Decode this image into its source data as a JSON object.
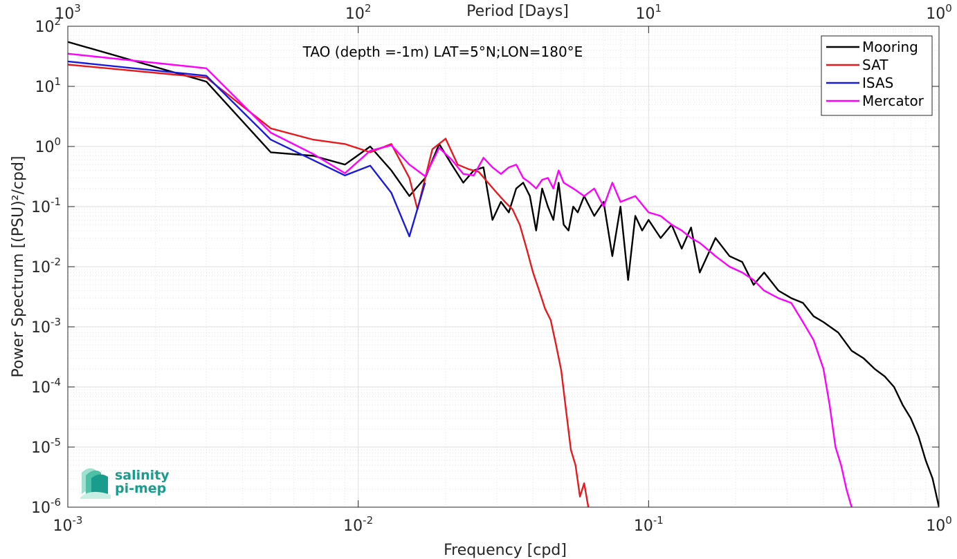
{
  "chart_data": {
    "type": "line",
    "title": "TAO (depth =-1m) LAT=5°N;LON=180°E",
    "xlabel": "Frequency [cpd]",
    "ylabel": "Power Spectrum [(PSU)²/cpd]",
    "top_xlabel": "Period [Days]",
    "xscale": "log",
    "yscale": "log",
    "xlim": [
      0.001,
      1
    ],
    "ylim": [
      1e-06,
      100
    ],
    "grid": true,
    "legend_position": "top-right",
    "x_ticks": [
      {
        "base": "10",
        "exp": "-3"
      },
      {
        "base": "10",
        "exp": "-2"
      },
      {
        "base": "10",
        "exp": "-1"
      },
      {
        "base": "10",
        "exp": "0"
      }
    ],
    "top_ticks": [
      {
        "base": "10",
        "exp": "3"
      },
      {
        "base": "10",
        "exp": "2"
      },
      {
        "base": "10",
        "exp": "1"
      },
      {
        "base": "10",
        "exp": "0"
      }
    ],
    "y_ticks": [
      {
        "base": "10",
        "exp": "2"
      },
      {
        "base": "10",
        "exp": "1"
      },
      {
        "base": "10",
        "exp": "0"
      },
      {
        "base": "10",
        "exp": "-1"
      },
      {
        "base": "10",
        "exp": "-2"
      },
      {
        "base": "10",
        "exp": "-3"
      },
      {
        "base": "10",
        "exp": "-4"
      },
      {
        "base": "10",
        "exp": "-5"
      },
      {
        "base": "10",
        "exp": "-6"
      }
    ],
    "series": [
      {
        "name": "Mooring",
        "color": "#000000",
        "x": [
          0.001,
          0.003,
          0.005,
          0.007,
          0.009,
          0.011,
          0.013,
          0.015,
          0.017,
          0.019,
          0.021,
          0.023,
          0.025,
          0.027,
          0.029,
          0.031,
          0.033,
          0.035,
          0.037,
          0.039,
          0.041,
          0.043,
          0.045,
          0.047,
          0.049,
          0.051,
          0.053,
          0.055,
          0.057,
          0.06,
          0.065,
          0.07,
          0.075,
          0.08,
          0.085,
          0.09,
          0.095,
          0.1,
          0.11,
          0.12,
          0.13,
          0.14,
          0.15,
          0.17,
          0.19,
          0.21,
          0.23,
          0.25,
          0.28,
          0.31,
          0.34,
          0.37,
          0.4,
          0.45,
          0.5,
          0.55,
          0.6,
          0.65,
          0.7,
          0.75,
          0.8,
          0.85,
          0.9,
          0.95,
          1.0
        ],
        "y": [
          55,
          12,
          0.8,
          0.7,
          0.5,
          1.0,
          0.4,
          0.15,
          0.3,
          1.1,
          0.5,
          0.25,
          0.4,
          0.45,
          0.06,
          0.12,
          0.08,
          0.2,
          0.25,
          0.15,
          0.04,
          0.2,
          0.1,
          0.06,
          0.25,
          0.05,
          0.04,
          0.1,
          0.08,
          0.15,
          0.07,
          0.12,
          0.015,
          0.1,
          0.006,
          0.07,
          0.04,
          0.06,
          0.03,
          0.05,
          0.02,
          0.045,
          0.008,
          0.03,
          0.015,
          0.012,
          0.005,
          0.008,
          0.004,
          0.003,
          0.0025,
          0.0015,
          0.0012,
          0.0008,
          0.0004,
          0.0003,
          0.0002,
          0.00015,
          0.0001,
          5e-05,
          3e-05,
          1.5e-05,
          6e-06,
          3e-06,
          1e-06
        ]
      },
      {
        "name": "SAT",
        "color": "#e8191e",
        "x": [
          0.001,
          0.003,
          0.005,
          0.007,
          0.009,
          0.011,
          0.013,
          0.015,
          0.016,
          0.018,
          0.02,
          0.022,
          0.024,
          0.026,
          0.028,
          0.03,
          0.032,
          0.034,
          0.036,
          0.038,
          0.04,
          0.042,
          0.044,
          0.046,
          0.048,
          0.05,
          0.052,
          0.054,
          0.056,
          0.058,
          0.06,
          0.062
        ],
        "y": [
          23,
          14,
          2.0,
          1.3,
          1.1,
          0.8,
          1.1,
          0.3,
          0.09,
          0.9,
          1.35,
          0.5,
          0.42,
          0.38,
          0.25,
          0.17,
          0.12,
          0.09,
          0.05,
          0.02,
          0.008,
          0.004,
          0.002,
          0.0013,
          0.0005,
          0.00019,
          4e-05,
          9e-06,
          5e-06,
          1.5e-06,
          2.5e-06,
          1e-06
        ]
      },
      {
        "name": "ISAS",
        "color": "#1a1adc",
        "x": [
          0.001,
          0.003,
          0.005,
          0.009,
          0.011,
          0.013,
          0.015,
          0.017
        ],
        "y": [
          26,
          15,
          1.3,
          0.33,
          0.48,
          0.17,
          0.032,
          0.25
        ]
      },
      {
        "name": "Mercator",
        "color": "#ff00ff",
        "x": [
          0.001,
          0.003,
          0.005,
          0.007,
          0.009,
          0.011,
          0.013,
          0.015,
          0.017,
          0.019,
          0.021,
          0.023,
          0.025,
          0.027,
          0.029,
          0.031,
          0.033,
          0.035,
          0.037,
          0.039,
          0.041,
          0.043,
          0.045,
          0.047,
          0.049,
          0.051,
          0.055,
          0.06,
          0.065,
          0.07,
          0.075,
          0.08,
          0.09,
          0.1,
          0.11,
          0.12,
          0.13,
          0.14,
          0.15,
          0.17,
          0.19,
          0.21,
          0.23,
          0.25,
          0.28,
          0.31,
          0.34,
          0.37,
          0.4,
          0.42,
          0.44,
          0.46,
          0.48,
          0.5
        ],
        "y": [
          35,
          20,
          1.7,
          0.75,
          0.36,
          0.85,
          1.05,
          0.5,
          0.32,
          0.95,
          0.6,
          0.35,
          0.33,
          0.65,
          0.45,
          0.35,
          0.45,
          0.5,
          0.3,
          0.25,
          0.2,
          0.28,
          0.3,
          0.2,
          0.4,
          0.25,
          0.2,
          0.15,
          0.2,
          0.1,
          0.25,
          0.12,
          0.15,
          0.08,
          0.07,
          0.05,
          0.04,
          0.03,
          0.025,
          0.015,
          0.01,
          0.008,
          0.006,
          0.004,
          0.003,
          0.0025,
          0.0012,
          0.0006,
          0.0002,
          5e-05,
          1e-05,
          5e-06,
          2e-06,
          1e-06
        ]
      }
    ]
  },
  "logo": {
    "line1": "salinity",
    "line2": "pi-mep"
  }
}
